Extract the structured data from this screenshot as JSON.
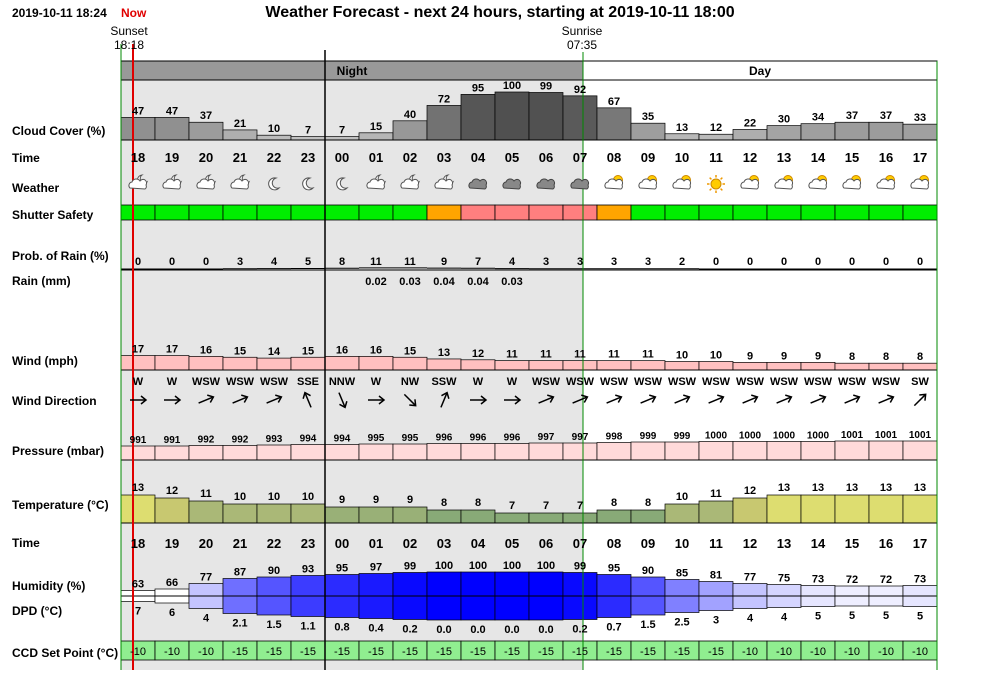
{
  "header": {
    "timestamp": "2019-10-11 18:24",
    "now_label": "Now",
    "title": "Weather Forecast - next 24 hours, starting at 2019-10-11 18:00",
    "sunset_label": "Sunset",
    "sunset_time": "18:18",
    "sunrise_label": "Sunrise",
    "sunrise_time": "07:35",
    "night_label": "Night",
    "day_label": "Day"
  },
  "row_labels": {
    "cloud": "Cloud Cover (%)",
    "time": "Time",
    "weather": "Weather",
    "shutter": "Shutter Safety",
    "prob_rain": "Prob. of Rain (%)",
    "rain": "Rain (mm)",
    "wind": "Wind (mph)",
    "wind_dir": "Wind Direction",
    "pressure": "Pressure (mbar)",
    "temperature": "Temperature (°C)",
    "time2": "Time",
    "humidity": "Humidity (%)",
    "dpd": "DPD (°C)",
    "ccd": "CCD Set Point (°C)"
  },
  "chart_data": {
    "type": "table",
    "hours": [
      "18",
      "19",
      "20",
      "21",
      "22",
      "23",
      "00",
      "01",
      "02",
      "03",
      "04",
      "05",
      "06",
      "07",
      "08",
      "09",
      "10",
      "11",
      "12",
      "13",
      "14",
      "15",
      "16",
      "17"
    ],
    "cloud_cover": [
      47,
      47,
      37,
      21,
      10,
      7,
      7,
      15,
      40,
      72,
      95,
      100,
      99,
      92,
      67,
      35,
      13,
      12,
      22,
      30,
      34,
      37,
      37,
      33
    ],
    "weather_icons": [
      "partly-cloudy-night-icon",
      "partly-cloudy-night-icon",
      "partly-cloudy-night-icon",
      "partly-cloudy-night-icon",
      "moon-icon",
      "moon-icon",
      "moon-icon",
      "partly-cloudy-night-icon",
      "partly-cloudy-night-icon",
      "partly-cloudy-night-icon",
      "cloud-icon",
      "cloud-icon",
      "cloud-icon",
      "cloud-icon",
      "partly-cloudy-day-icon",
      "partly-cloudy-day-icon",
      "partly-cloudy-day-icon",
      "sun-icon",
      "partly-cloudy-day-icon",
      "partly-cloudy-day-icon",
      "partly-cloudy-day-icon",
      "partly-cloudy-day-icon",
      "partly-cloudy-day-icon",
      "partly-cloudy-day-icon"
    ],
    "shutter_safety": [
      "safe",
      "safe",
      "safe",
      "safe",
      "safe",
      "safe",
      "safe",
      "safe",
      "safe",
      "caution",
      "unsafe",
      "unsafe",
      "unsafe",
      "unsafe",
      "caution",
      "safe",
      "safe",
      "safe",
      "safe",
      "safe",
      "safe",
      "safe",
      "safe",
      "safe"
    ],
    "shutter_colors": {
      "safe": "#00ee00",
      "caution": "#ffa500",
      "unsafe": "#ff7f7f"
    },
    "prob_rain": [
      0,
      0,
      0,
      3,
      4,
      5,
      8,
      11,
      11,
      9,
      7,
      4,
      3,
      3,
      3,
      3,
      2,
      0,
      0,
      0,
      0,
      0,
      0,
      0
    ],
    "rain_mm": [
      "",
      "",
      "",
      "",
      "",
      "",
      "",
      "0.02",
      "0.03",
      "0.04",
      "0.04",
      "0.03",
      "",
      "",
      "",
      "",
      "",
      "",
      "",
      "",
      "",
      "",
      "",
      ""
    ],
    "wind_mph": [
      17,
      17,
      16,
      15,
      14,
      15,
      16,
      16,
      15,
      13,
      12,
      11,
      11,
      11,
      11,
      11,
      10,
      10,
      9,
      9,
      9,
      8,
      8,
      8
    ],
    "wind_direction": [
      "W",
      "W",
      "WSW",
      "WSW",
      "WSW",
      "SSE",
      "NNW",
      "W",
      "NW",
      "SSW",
      "W",
      "W",
      "WSW",
      "WSW",
      "WSW",
      "WSW",
      "WSW",
      "WSW",
      "WSW",
      "WSW",
      "WSW",
      "WSW",
      "WSW",
      "SW"
    ],
    "pressure_mbar": [
      991,
      991,
      992,
      992,
      993,
      994,
      994,
      995,
      995,
      996,
      996,
      996,
      997,
      997,
      998,
      999,
      999,
      1000,
      1000,
      1000,
      1000,
      1001,
      1001,
      1001
    ],
    "temperature_c": [
      13,
      12,
      11,
      10,
      10,
      10,
      9,
      9,
      9,
      8,
      8,
      7,
      7,
      7,
      8,
      8,
      10,
      11,
      12,
      13,
      13,
      13,
      13,
      13
    ],
    "humidity_pct": [
      63,
      66,
      77,
      87,
      90,
      93,
      95,
      97,
      99,
      100,
      100,
      100,
      100,
      99,
      95,
      90,
      85,
      81,
      77,
      75,
      73,
      72,
      72,
      73
    ],
    "dpd_c": [
      "7",
      "6",
      "4",
      "2.1",
      "1.5",
      "1.1",
      "0.8",
      "0.4",
      "0.2",
      "0.0",
      "0.0",
      "0.0",
      "0.0",
      "0.2",
      "0.7",
      "1.5",
      "2.5",
      "3",
      "4",
      "4",
      "5",
      "5",
      "5",
      "5"
    ],
    "ccd_set_point_c": [
      -10,
      -10,
      -10,
      -15,
      -15,
      -15,
      -15,
      -15,
      -15,
      -15,
      -15,
      -15,
      -15,
      -15,
      -15,
      -15,
      -15,
      -15,
      -10,
      -10,
      -10,
      -10,
      -10,
      -10
    ],
    "ccd_color": "#90ee90",
    "night_color": "#e6e6e6",
    "night_band_color": "#999999",
    "now_color": "#e00000"
  }
}
